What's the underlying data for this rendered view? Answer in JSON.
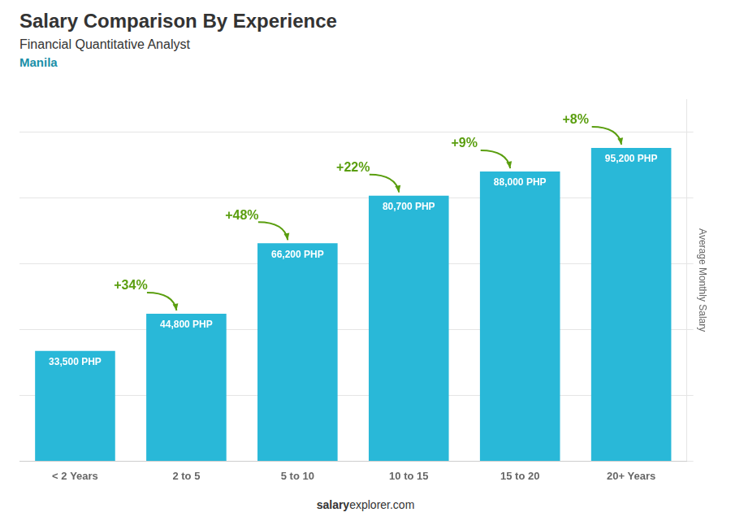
{
  "chart_data": {
    "type": "bar",
    "title": "Salary Comparison By Experience",
    "subtitle": "Financial Quantitative Analyst",
    "city": "Manila",
    "y_label": "Average Monthly Salary",
    "categories": [
      "< 2 Years",
      "2 to 5",
      "5 to 10",
      "10 to 15",
      "15 to 20",
      "20+ Years"
    ],
    "values": [
      33500,
      44800,
      66200,
      80700,
      88000,
      95200
    ],
    "value_labels": [
      "33,500 PHP",
      "44,800 PHP",
      "66,200 PHP",
      "80,700 PHP",
      "88,000 PHP",
      "95,200 PHP"
    ],
    "data_labels": true,
    "annotations": [
      "+34%",
      "+48%",
      "+22%",
      "+9%",
      "+8%"
    ],
    "footer": [
      "salary",
      "explorer.com"
    ],
    "color": "#29b8d8",
    "ylim": [
      0,
      110000
    ],
    "yticks": [
      0,
      20000,
      40000,
      60000,
      80000,
      100000
    ],
    "grid": true,
    "tick_labels": "x"
  }
}
